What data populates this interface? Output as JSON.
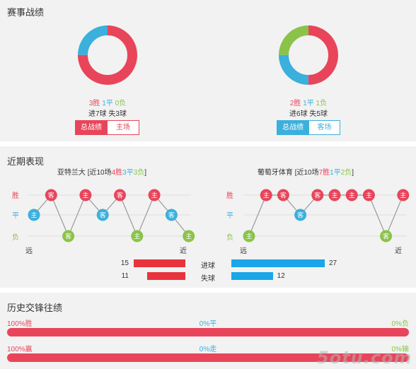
{
  "colors": {
    "red": "#e8455a",
    "blue": "#3bb0dc",
    "green": "#8bc34a",
    "bar_red": "#e8333c",
    "bar_blue": "#1aa6e8"
  },
  "record": {
    "title": "赛事战绩",
    "teams": [
      {
        "donut": [
          {
            "value": 3,
            "color": "red"
          },
          {
            "value": 1,
            "color": "blue"
          },
          {
            "value": 0,
            "color": "green"
          }
        ],
        "win": "3胜",
        "draw": "1平",
        "loss": "0负",
        "goals": "进7球 失3球",
        "tab_total": "总战绩",
        "tab_venue": "主场",
        "active": "red"
      },
      {
        "donut": [
          {
            "value": 2,
            "color": "red"
          },
          {
            "value": 1,
            "color": "blue"
          },
          {
            "value": 1,
            "color": "green"
          }
        ],
        "win": "2胜",
        "draw": "1平",
        "loss": "1负",
        "goals": "进6球 失5球",
        "tab_total": "总战绩",
        "tab_venue": "客场",
        "active": "blue"
      }
    ]
  },
  "form": {
    "title": "近期表现",
    "row_labels": [
      "胜",
      "平",
      "负"
    ],
    "far": "远",
    "near": "近",
    "teams": [
      {
        "name": "亚特兰大",
        "prefix": "[近10场",
        "w": "4胜",
        "d": "3平",
        "l": "3负",
        "suffix": "]",
        "sequence": [
          {
            "r": "D",
            "v": "主"
          },
          {
            "r": "W",
            "v": "客"
          },
          {
            "r": "L",
            "v": "客"
          },
          {
            "r": "W",
            "v": "主"
          },
          {
            "r": "D",
            "v": "客"
          },
          {
            "r": "W",
            "v": "客"
          },
          {
            "r": "L",
            "v": "主"
          },
          {
            "r": "W",
            "v": "主"
          },
          {
            "r": "D",
            "v": "客"
          },
          {
            "r": "L",
            "v": "主"
          }
        ]
      },
      {
        "name": "葡萄牙体育",
        "prefix": "[近10场",
        "w": "7胜",
        "d": "1平",
        "l": "2负",
        "suffix": "]",
        "sequence": [
          {
            "r": "L",
            "v": "主"
          },
          {
            "r": "W",
            "v": "主"
          },
          {
            "r": "W",
            "v": "客"
          },
          {
            "r": "D",
            "v": "客"
          },
          {
            "r": "W",
            "v": "客"
          },
          {
            "r": "W",
            "v": "主"
          },
          {
            "r": "W",
            "v": "主"
          },
          {
            "r": "W",
            "v": "主"
          },
          {
            "r": "L",
            "v": "客"
          },
          {
            "r": "W",
            "v": "主"
          }
        ]
      }
    ],
    "scored_label": "进球",
    "conceded_label": "失球",
    "home_scored": 15,
    "home_conceded": 11,
    "away_scored": 27,
    "away_conceded": 12,
    "bar_max": 27
  },
  "history": {
    "title": "历史交锋往绩",
    "row1": {
      "left": "100%胜",
      "mid": "0%平",
      "right": "0%负"
    },
    "row2": {
      "left": "100%赢",
      "mid": "0%走",
      "right": "0%输"
    }
  },
  "watermark": "5otu.com"
}
